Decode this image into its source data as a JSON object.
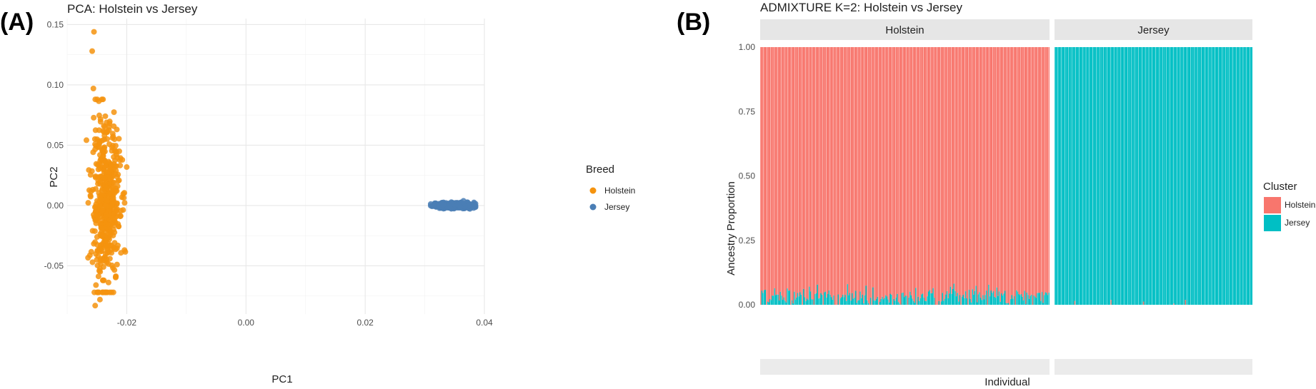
{
  "panels": {
    "a": "(A)",
    "b": "(B)"
  },
  "chart_data": [
    {
      "type": "scatter",
      "title": "PCA: Holstein vs Jersey",
      "xlabel": "PC1",
      "ylabel": "PC2",
      "xlim": [
        -0.03,
        0.04
      ],
      "ylim": [
        -0.09,
        0.155
      ],
      "xticks": [
        -0.02,
        0.0,
        0.02,
        0.04
      ],
      "xtick_labels": [
        "-0.02",
        "0.00",
        "0.02",
        "0.04"
      ],
      "yticks": [
        -0.05,
        0.0,
        0.05,
        0.1,
        0.15
      ],
      "ytick_labels": [
        "-0.05",
        "0.00",
        "0.05",
        "0.10",
        "0.15"
      ],
      "grid": true,
      "legend": {
        "title": "Breed",
        "position": "right"
      },
      "series": [
        {
          "name": "Holstein",
          "color": "#F5930E",
          "n": 500,
          "x_center": -0.0235,
          "x_spread": 0.0012,
          "y_center": 0.0,
          "y_spread": 0.033,
          "outliers": [
            [
              -0.0255,
              0.144
            ],
            [
              -0.0258,
              0.128
            ],
            [
              -0.0256,
              0.097
            ],
            [
              -0.0253,
              -0.083
            ],
            [
              -0.0245,
              -0.078
            ]
          ]
        },
        {
          "name": "Jersey",
          "color": "#4A7EB5",
          "n": 260,
          "x_center": 0.0348,
          "x_spread": 0.0017,
          "y_center": 0.0,
          "y_spread": 0.0013
        }
      ]
    },
    {
      "type": "bar",
      "subtype": "stacked-proportion",
      "title": "ADMIXTURE K=2: Holstein vs Jersey",
      "xlabel": "Individual",
      "ylabel": "Ancestry Proportion",
      "ylim": [
        0,
        1
      ],
      "yticks": [
        0,
        0.25,
        0.5,
        0.75,
        1
      ],
      "ytick_labels": [
        "0.00",
        "0.25",
        "0.50",
        "0.75",
        "1.00"
      ],
      "facets": [
        "Holstein",
        "Jersey"
      ],
      "legend": {
        "title": "Cluster",
        "position": "right"
      },
      "clusters": [
        {
          "name": "Holstein",
          "color": "#F8766D"
        },
        {
          "name": "Jersey",
          "color": "#00BFC4"
        }
      ],
      "groups": [
        {
          "name": "Holstein",
          "n_individuals": 250,
          "minor_cluster": "Jersey",
          "minor_mean": 0.035,
          "minor_max": 0.09
        },
        {
          "name": "Jersey",
          "n_individuals": 170,
          "minor_cluster": "Holstein",
          "minor_mean": 0.001,
          "minor_max": 0.02
        }
      ]
    }
  ]
}
